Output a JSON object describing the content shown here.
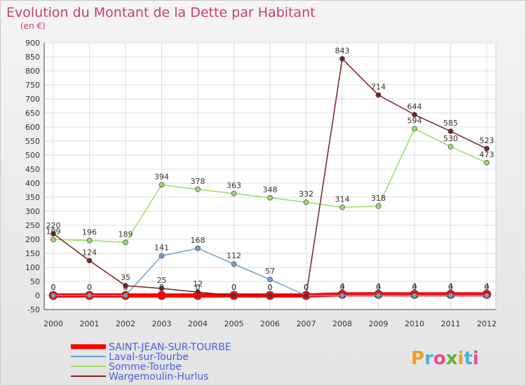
{
  "chart_data": {
    "type": "line",
    "title": "Evolution du Montant de la Dette par Habitant",
    "subtitle": "(en €)",
    "x": [
      "2000",
      "2001",
      "2002",
      "2003",
      "2004",
      "2005",
      "2006",
      "2007",
      "2008",
      "2009",
      "2010",
      "2011",
      "2012"
    ],
    "ylim": [
      -50,
      900
    ],
    "yticks": [
      -50,
      0,
      50,
      100,
      150,
      200,
      250,
      300,
      350,
      400,
      450,
      500,
      550,
      600,
      650,
      700,
      750,
      800,
      850,
      900
    ],
    "grid": true,
    "legend_position": "bottom-left",
    "series": [
      {
        "name": "SAINT-JEAN-SUR-TOURBE",
        "color": "#ff0000",
        "values": [
          0,
          0,
          0,
          0,
          0,
          0,
          0,
          0,
          4,
          4,
          4,
          4,
          4
        ]
      },
      {
        "name": "Laval-sur-Tourbe",
        "color": "#6fa0d0",
        "values": [
          0,
          0,
          0,
          141,
          168,
          112,
          57,
          0,
          0,
          0,
          0,
          0,
          0
        ]
      },
      {
        "name": "Somme-Tourbe",
        "color": "#99dd66",
        "values": [
          199,
          196,
          189,
          394,
          378,
          363,
          348,
          332,
          314,
          318,
          594,
          530,
          473
        ]
      },
      {
        "name": "Wargemoulin-Hurlus",
        "color": "#7a2020",
        "values": [
          220,
          124,
          35,
          25,
          12,
          0,
          0,
          0,
          843,
          714,
          644,
          585,
          523
        ]
      }
    ],
    "data_labels": {
      "SAINT-JEAN-SUR-TOURBE": [
        "0",
        "0",
        "0",
        "0",
        "0",
        "0",
        "0",
        "0",
        "4",
        "4",
        "4",
        "4",
        "4"
      ],
      "Laval-sur-Tourbe": [
        "0",
        "0",
        "0",
        "141",
        "168",
        "112",
        "57",
        "0",
        "0",
        "0",
        "0",
        "0",
        "0"
      ],
      "Somme-Tourbe": [
        "199",
        "196",
        "189",
        "394",
        "378",
        "363",
        "348",
        "332",
        "314",
        "318",
        "594",
        "530",
        "473"
      ],
      "Wargemoulin-Hurlus": [
        "220",
        "124",
        "35",
        "25",
        "12",
        "0",
        "0",
        "0",
        "843",
        "714",
        "644",
        "585",
        "523"
      ]
    }
  },
  "brand": {
    "logo_text": "Proxiti",
    "colors": [
      "#f0a020",
      "#4ab0e0",
      "#e05090",
      "#60b030"
    ]
  }
}
